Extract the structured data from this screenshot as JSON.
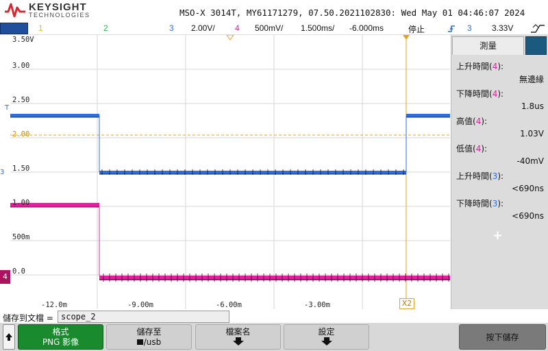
{
  "header": {
    "brand": "KEYSIGHT",
    "brand_sub": "TECHNOLOGIES",
    "model_info": "MSO-X 3014T, MY61171279, 07.50.2021102830: Wed May 01 04:46:07 2024"
  },
  "channel_bar": {
    "ch1": "1",
    "ch2": "2",
    "ch3": "3",
    "ch3_scale": "2.00V/",
    "ch4": "4",
    "ch4_scale": "500mV/",
    "timebase": "1.500ms/",
    "delay": "-6.000ms",
    "run_state": "停止",
    "trigger_icon": "trigger-edge-icon",
    "trigger_source": "3",
    "trigger_level": "3.33V",
    "trigger_slope_icon": "slope-icon"
  },
  "graticule": {
    "y_labels": [
      "3.50V",
      "3.00",
      "2.50",
      "2.00",
      "1.50",
      "1.00",
      "500m",
      "0.0"
    ],
    "x_labels": [
      "-12.0m",
      "-9.00m",
      "-6.00m",
      "-3.00m"
    ],
    "cursor_x2": "X2",
    "markers": {
      "trigger": "T",
      "ch3": "3",
      "ch4": "4"
    }
  },
  "colors": {
    "ch1": "#f2e600",
    "ch2": "#26b84a",
    "ch3": "#2e6fe0",
    "ch4": "#e0209e",
    "cursor": "#e8a020"
  },
  "measurements": {
    "tab": "測量",
    "items": [
      {
        "label": "上升時間",
        "ch": "4",
        "value": "無邊緣"
      },
      {
        "label": "下降時間",
        "ch": "4",
        "value": "1.8us"
      },
      {
        "label": "高值",
        "ch": "4",
        "value": "1.03V"
      },
      {
        "label": "低值",
        "ch": "4",
        "value": "-40mV"
      },
      {
        "label": "上升時間",
        "ch": "3",
        "value": "<690ns"
      },
      {
        "label": "下降時間",
        "ch": "3",
        "value": "<690ns"
      }
    ],
    "add": "+"
  },
  "save": {
    "label": "儲存到文檔 =",
    "filename": "scope_2"
  },
  "softkeys": {
    "format_top": "格式",
    "format_bottom": "PNG 影像",
    "save_to_top": "儲存至",
    "save_to_bottom": "/usb",
    "filename_top": "檔案名",
    "settings_top": "設定",
    "press_save": "按下儲存"
  }
}
